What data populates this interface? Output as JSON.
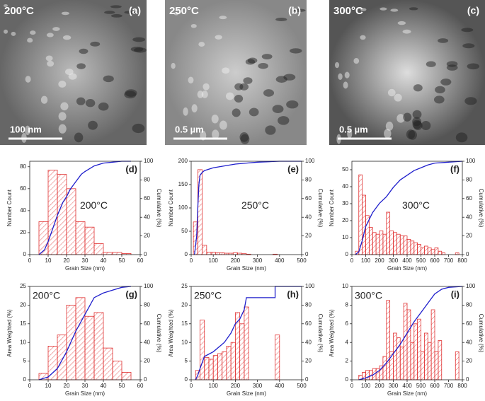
{
  "images": [
    {
      "label": "200°C",
      "panel": "(a)",
      "scale_bar": "100 nm"
    },
    {
      "label": "250°C",
      "panel": "(b)",
      "scale_bar": "0.5 µm"
    },
    {
      "label": "300°C",
      "panel": "(c)",
      "scale_bar": "0.5 µm"
    }
  ],
  "chart_data": [
    {
      "type": "histogram",
      "panel": "(d)",
      "annotation": "200°C",
      "xlabel": "Grain Size (nm)",
      "ylabel": "Number Count",
      "y2label": "Cumulative (%)",
      "bins": [
        5,
        10,
        15,
        20,
        25,
        30,
        35,
        40,
        45,
        50,
        55
      ],
      "values": [
        30,
        77,
        73,
        60,
        30,
        25,
        10,
        2,
        2,
        1
      ],
      "color": "#e03030",
      "xlim": [
        0,
        60
      ],
      "xticks": [
        0,
        10,
        20,
        30,
        40,
        50,
        60
      ],
      "ylim": [
        0,
        85
      ],
      "yticks": [
        0,
        20,
        40,
        60,
        80
      ],
      "y2lim": [
        0,
        100
      ],
      "y2ticks": [
        0,
        20,
        40,
        60,
        80,
        100
      ],
      "cumulative": {
        "x": [
          5,
          8,
          10,
          12,
          15,
          18,
          20,
          22,
          25,
          28,
          30,
          35,
          40,
          45,
          50,
          55
        ],
        "values": [
          0,
          5,
          14,
          25,
          42,
          56,
          62,
          70,
          78,
          86,
          89,
          95,
          98,
          99,
          100,
          100
        ],
        "color": "#1f1fcc",
        "axis": "y2"
      }
    },
    {
      "type": "histogram",
      "panel": "(e)",
      "annotation": "250°C",
      "xlabel": "Grain Size (nm)",
      "ylabel": "Number Count",
      "y2label": "Cumulative (%)",
      "bins": [
        10,
        30,
        50,
        70,
        90,
        110,
        130,
        150,
        170,
        190,
        210,
        230,
        250,
        270,
        290,
        310,
        330,
        350,
        370,
        390,
        410
      ],
      "values": [
        70,
        182,
        20,
        5,
        5,
        4,
        4,
        3,
        3,
        4,
        3,
        2,
        1,
        0,
        0,
        0,
        0,
        0,
        1,
        0
      ],
      "color": "#e03030",
      "xlim": [
        0,
        500
      ],
      "xticks": [
        0,
        100,
        200,
        300,
        400,
        500
      ],
      "ylim": [
        0,
        200
      ],
      "yticks": [
        0,
        50,
        100,
        150,
        200
      ],
      "y2lim": [
        0,
        100
      ],
      "y2ticks": [
        0,
        20,
        40,
        60,
        80,
        100
      ],
      "cumulative": {
        "x": [
          15,
          25,
          30,
          35,
          40,
          50,
          60,
          100,
          150,
          200,
          250,
          300,
          400,
          500
        ],
        "values": [
          0,
          20,
          50,
          75,
          85,
          88,
          90,
          93,
          95,
          97,
          98,
          99,
          100,
          100
        ],
        "color": "#1f1fcc",
        "axis": "y2"
      }
    },
    {
      "type": "histogram",
      "panel": "(f)",
      "annotation": "300°C",
      "xlabel": "Grain Size (nm)",
      "ylabel": "Number Count",
      "y2label": "Cumulative (%)",
      "bins": [
        25,
        50,
        75,
        100,
        125,
        150,
        175,
        200,
        225,
        250,
        275,
        300,
        325,
        350,
        375,
        400,
        425,
        450,
        475,
        500,
        525,
        550,
        575,
        600,
        625,
        650,
        675,
        700,
        725,
        750,
        775,
        800
      ],
      "values": [
        2,
        47,
        35,
        23,
        16,
        13,
        12,
        14,
        12,
        25,
        14,
        13,
        12,
        11,
        11,
        9,
        8,
        7,
        6,
        4,
        5,
        4,
        3,
        4,
        2,
        1,
        0,
        0,
        0,
        1,
        0
      ],
      "color": "#e03030",
      "xlim": [
        0,
        800
      ],
      "xticks": [
        0,
        100,
        200,
        300,
        400,
        500,
        600,
        700,
        800
      ],
      "ylim": [
        0,
        55
      ],
      "yticks": [
        0,
        10,
        20,
        30,
        40,
        50
      ],
      "y2lim": [
        0,
        100
      ],
      "y2ticks": [
        0,
        20,
        40,
        60,
        80,
        100
      ],
      "cumulative": {
        "x": [
          25,
          50,
          75,
          100,
          150,
          200,
          250,
          300,
          350,
          400,
          450,
          500,
          550,
          600,
          700,
          800
        ],
        "values": [
          0,
          3,
          15,
          30,
          45,
          55,
          62,
          72,
          80,
          85,
          90,
          93,
          96,
          98,
          99,
          100
        ],
        "color": "#1f1fcc",
        "axis": "y2"
      }
    },
    {
      "type": "histogram",
      "panel": "(g)",
      "annotation": "200°C",
      "xlabel": "Grain Size (nm)",
      "ylabel": "Area Weighted (%)",
      "y2label": "Cumulative (%)",
      "bins": [
        5,
        10,
        15,
        20,
        25,
        30,
        35,
        40,
        45,
        50,
        55
      ],
      "values": [
        1.7,
        9,
        12,
        20,
        22,
        17,
        18,
        8.5,
        5,
        2
      ],
      "color": "#e03030",
      "xlim": [
        0,
        60
      ],
      "xticks": [
        0,
        10,
        20,
        30,
        40,
        50,
        60
      ],
      "ylim": [
        0,
        25
      ],
      "yticks": [
        0,
        5,
        10,
        15,
        20,
        25
      ],
      "y2lim": [
        0,
        100
      ],
      "y2ticks": [
        0,
        20,
        40,
        60,
        80,
        100
      ],
      "cumulative": {
        "x": [
          5,
          10,
          15,
          20,
          25,
          30,
          35,
          40,
          45,
          50,
          55
        ],
        "values": [
          0,
          3,
          12,
          30,
          52,
          70,
          88,
          93,
          96,
          99,
          100
        ],
        "color": "#1f1fcc",
        "axis": "y2"
      }
    },
    {
      "type": "histogram",
      "panel": "(h)",
      "annotation": "250°C",
      "xlabel": "Grain Size (nm)",
      "ylabel": "Area Weighted (%)",
      "y2label": "Cumulative (%)",
      "bins": [
        20,
        40,
        60,
        80,
        100,
        120,
        140,
        160,
        180,
        200,
        220,
        240,
        260,
        280,
        300,
        320,
        340,
        360,
        380,
        400
      ],
      "values": [
        2.5,
        16,
        6,
        5.5,
        6.5,
        7,
        7.5,
        9,
        10,
        18,
        15,
        19.5,
        0,
        0,
        0,
        0,
        0,
        0,
        12
      ],
      "color": "#e03030",
      "xlim": [
        0,
        500
      ],
      "xticks": [
        0,
        100,
        200,
        300,
        400,
        500
      ],
      "ylim": [
        0,
        25
      ],
      "yticks": [
        0,
        5,
        10,
        15,
        20,
        25
      ],
      "y2lim": [
        0,
        100
      ],
      "y2ticks": [
        0,
        20,
        40,
        60,
        80,
        100
      ],
      "cumulative": {
        "x": [
          20,
          30,
          40,
          60,
          100,
          150,
          180,
          200,
          220,
          240,
          250,
          380,
          380,
          500
        ],
        "values": [
          0,
          5,
          12,
          25,
          30,
          40,
          50,
          60,
          65,
          75,
          88,
          88,
          100,
          100
        ],
        "color": "#1f1fcc",
        "axis": "y2"
      }
    },
    {
      "type": "histogram",
      "panel": "(i)",
      "annotation": "300°C",
      "xlabel": "Grain Size (nm)",
      "ylabel": "Area Weighted (%)",
      "y2label": "Cumulative (%)",
      "bins": [
        50,
        75,
        100,
        125,
        150,
        175,
        200,
        225,
        250,
        275,
        300,
        325,
        350,
        375,
        400,
        425,
        450,
        475,
        500,
        525,
        550,
        575,
        600,
        625,
        650,
        675,
        700,
        725,
        750,
        775
      ],
      "values": [
        0.5,
        0.8,
        1,
        1,
        1.2,
        1.2,
        1.5,
        2.5,
        8.5,
        3,
        5,
        4.5,
        3.5,
        8.2,
        7.5,
        4,
        6,
        6.5,
        3,
        5,
        4,
        7.5,
        3,
        4.2,
        0,
        0,
        0,
        0,
        3
      ],
      "color": "#e03030",
      "xlim": [
        0,
        800
      ],
      "xticks": [
        0,
        100,
        200,
        300,
        400,
        500,
        600,
        700,
        800
      ],
      "ylim": [
        0,
        10
      ],
      "yticks": [
        0,
        2,
        4,
        6,
        8,
        10
      ],
      "y2lim": [
        0,
        100
      ],
      "y2ticks": [
        0,
        20,
        40,
        60,
        80,
        100
      ],
      "cumulative": {
        "x": [
          50,
          100,
          150,
          200,
          250,
          300,
          350,
          400,
          450,
          500,
          550,
          600,
          650,
          700,
          800
        ],
        "values": [
          0,
          2,
          5,
          10,
          18,
          28,
          38,
          50,
          62,
          72,
          82,
          92,
          97,
          99,
          100
        ],
        "color": "#1f1fcc",
        "axis": "y2"
      }
    }
  ]
}
